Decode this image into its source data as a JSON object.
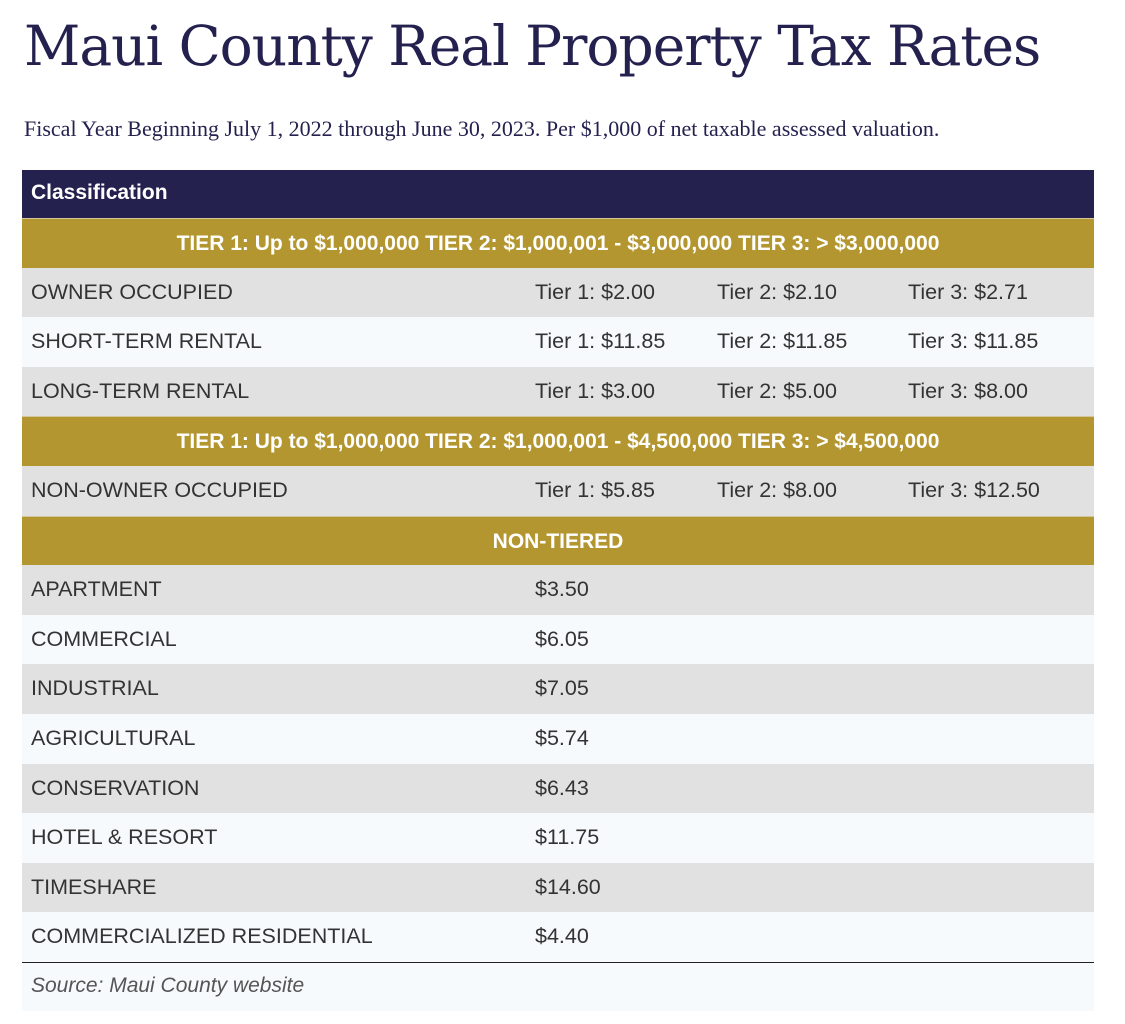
{
  "title": "Maui County Real Property Tax Rates",
  "subtitle": "Fiscal Year Beginning July 1, 2022 through June 30, 2023. Per $1,000 of net taxable assessed valuation.",
  "table": {
    "header": "Classification",
    "band1": "TIER 1: Up to $1,000,000  TIER 2: $1,000,001 - $3,000,000  TIER 3: > $3,000,000",
    "group1": [
      {
        "label": "OWNER OCCUPIED",
        "t1": "Tier 1: $2.00",
        "t2": "Tier 2: $2.10",
        "t3": "Tier 3: $2.71"
      },
      {
        "label": "SHORT-TERM RENTAL",
        "t1": "Tier 1: $11.85",
        "t2": "Tier 2: $11.85",
        "t3": "Tier 3: $11.85"
      },
      {
        "label": "LONG-TERM RENTAL",
        "t1": "Tier 1: $3.00",
        "t2": "Tier 2: $5.00",
        "t3": "Tier 3: $8.00"
      }
    ],
    "band2": "TIER 1: Up to $1,000,000  TIER 2: $1,000,001 - $4,500,000  TIER 3: > $4,500,000",
    "group2": [
      {
        "label": "NON-OWNER OCCUPIED",
        "t1": "Tier 1: $5.85",
        "t2": "Tier 2: $8.00",
        "t3": "Tier 3: $12.50"
      }
    ],
    "band3": "NON-TIERED",
    "group3": [
      {
        "label": "APARTMENT",
        "rate": "$3.50"
      },
      {
        "label": "COMMERCIAL",
        "rate": "$6.05"
      },
      {
        "label": "INDUSTRIAL",
        "rate": "$7.05"
      },
      {
        "label": "AGRICULTURAL",
        "rate": "$5.74"
      },
      {
        "label": "CONSERVATION",
        "rate": "$6.43"
      },
      {
        "label": "HOTEL & RESORT",
        "rate": "$11.75"
      },
      {
        "label": "TIMESHARE",
        "rate": "$14.60"
      },
      {
        "label": "COMMERCIALIZED RESIDENTIAL",
        "rate": "$4.40"
      }
    ],
    "source": "Source: Maui County website"
  },
  "colors": {
    "navy": "#25214f",
    "gold": "#b3962f",
    "row_gray": "#e1e1e1",
    "row_light": "#f7fafc"
  }
}
